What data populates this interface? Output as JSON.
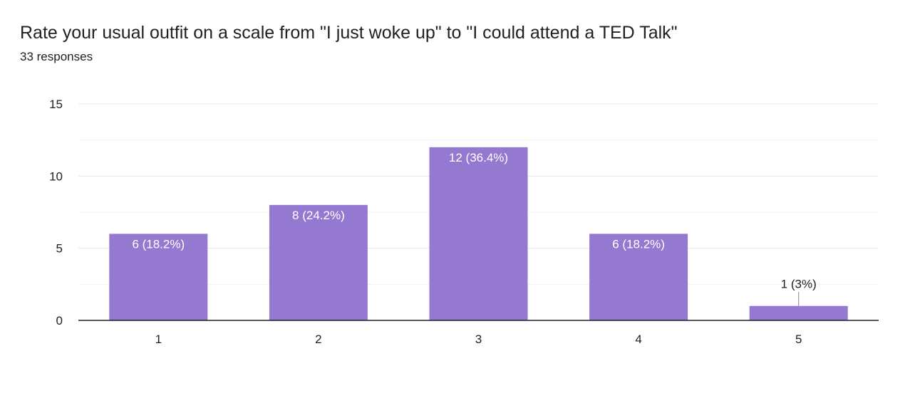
{
  "header": {
    "title": "Rate your usual outfit on a scale from \"I just woke up\" to \"I could attend a TED Talk\"",
    "responses": "33 responses"
  },
  "colors": {
    "bar": "#9579d1",
    "grid": "#e8e8e8",
    "axis": "#202124",
    "label_inside": "#ffffff",
    "label_outside": "#202124"
  },
  "chart_data": {
    "type": "bar",
    "categories": [
      "1",
      "2",
      "3",
      "4",
      "5"
    ],
    "values": [
      6,
      8,
      12,
      6,
      1
    ],
    "data_labels": [
      "6 (18.2%)",
      "8 (24.2%)",
      "12 (36.4%)",
      "6 (18.2%)",
      "1 (3%)"
    ],
    "ylim": [
      0,
      15
    ],
    "yticks": [
      0,
      5,
      10,
      15
    ],
    "minor_gridlines": [
      2.5,
      7.5,
      12.5
    ],
    "grid": true,
    "xlabel": "",
    "ylabel": ""
  }
}
